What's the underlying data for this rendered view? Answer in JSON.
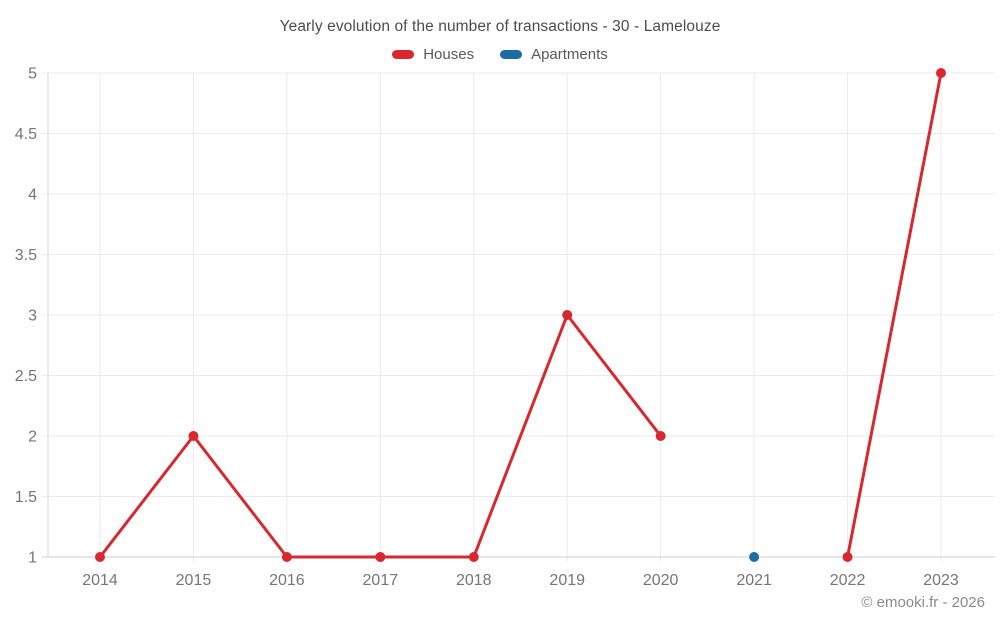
{
  "title": "Yearly evolution of the number of transactions - 30 - Lamelouze",
  "watermark": "© emooki.fr - 2026",
  "chart_data": {
    "type": "line",
    "title": "Yearly evolution of the number of transactions - 30 - Lamelouze",
    "categories": [
      "2014",
      "2015",
      "2016",
      "2017",
      "2018",
      "2019",
      "2020",
      "2021",
      "2022",
      "2023"
    ],
    "series": [
      {
        "name": "Houses",
        "color": "#d7282f",
        "values": [
          1,
          2,
          1,
          1,
          1,
          3,
          2,
          null,
          1,
          5
        ]
      },
      {
        "name": "Apartments",
        "color": "#1b6ca3",
        "values": [
          null,
          null,
          null,
          null,
          null,
          null,
          null,
          1,
          null,
          null
        ]
      }
    ],
    "xlabel": "",
    "ylabel": "",
    "ylim": [
      1,
      5
    ],
    "ystep": 0.5,
    "y_ticks": [
      "1",
      "1.5",
      "2",
      "2.5",
      "3",
      "3.5",
      "4",
      "4.5",
      "5"
    ],
    "grid": true,
    "legend_position": "top",
    "point_style": "circle"
  },
  "colors": {
    "gridline": "#ebebeb",
    "baseline": "#cbcbcb",
    "axis_line": "#d6d6d6",
    "title_text": "#4c4c4e",
    "tick_text": "#757575",
    "watermark_text": "#8a8a8a"
  }
}
